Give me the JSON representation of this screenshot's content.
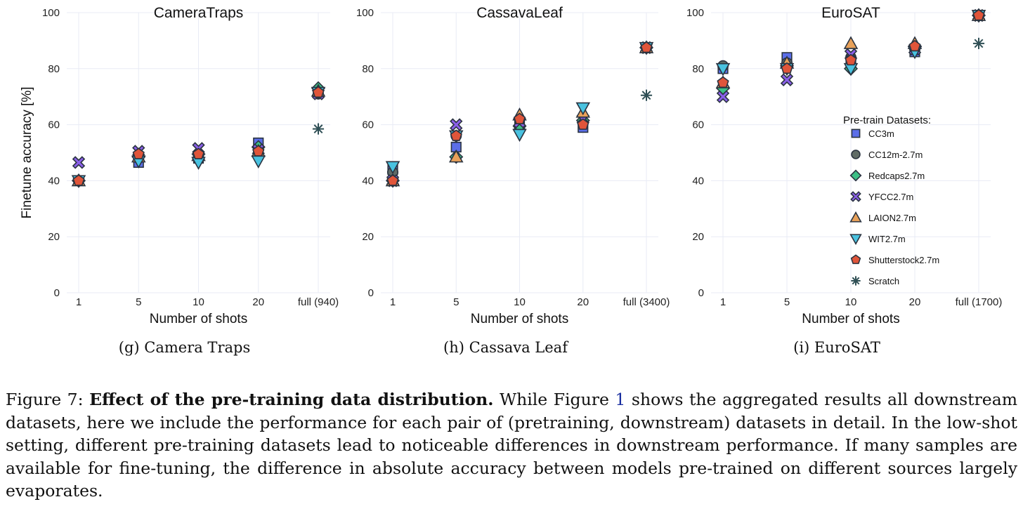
{
  "colors": {
    "CC3m": "#5b6ee8",
    "CC12m-2.7m": "#5f6b66",
    "Redcaps2.7m": "#3dbf86",
    "YFCC2.7m": "#8a5fe8",
    "LAION2.7m": "#e8a15a",
    "WIT2.7m": "#49c2e0",
    "Shutterstock2.7m": "#e0553a",
    "Scratch": "#2f4f55",
    "grid": "#e8ebf5",
    "stroke": "#2a3340"
  },
  "legend": {
    "title": "Pre-train Datasets:",
    "entries": [
      {
        "label": "CC3m",
        "marker": "square-icon",
        "color": "#5b6ee8"
      },
      {
        "label": "CC12m-2.7m",
        "marker": "circle-icon",
        "color": "#5f6b66"
      },
      {
        "label": "Redcaps2.7m",
        "marker": "diamond-icon",
        "color": "#3dbf86"
      },
      {
        "label": "YFCC2.7m",
        "marker": "x-icon",
        "color": "#8a5fe8"
      },
      {
        "label": "LAION2.7m",
        "marker": "triangle-up-icon",
        "color": "#e8a15a"
      },
      {
        "label": "WIT2.7m",
        "marker": "triangle-down-icon",
        "color": "#49c2e0"
      },
      {
        "label": "Shutterstock2.7m",
        "marker": "pentagon-icon",
        "color": "#e0553a"
      },
      {
        "label": "Scratch",
        "marker": "asterisk-icon",
        "color": "#2f4f55"
      }
    ]
  },
  "chart_data": [
    {
      "type": "scatter",
      "title": "CameraTraps",
      "subcaption": "(g)  Camera Traps",
      "xlabel": "Number of shots",
      "ylabel": "Finetune accuracy [%]",
      "categories": [
        "1",
        "5",
        "10",
        "20",
        "full (940)"
      ],
      "ylim": [
        0,
        100
      ],
      "yticks": [
        "0",
        "20",
        "40",
        "60",
        "80",
        "100"
      ],
      "grid": true,
      "series": [
        {
          "name": "CC3m",
          "values": [
            40,
            46.5,
            48,
            53.5,
            71.5
          ]
        },
        {
          "name": "CC12m-2.7m",
          "values": [
            40,
            48,
            49,
            51,
            71
          ]
        },
        {
          "name": "Redcaps2.7m",
          "values": [
            40,
            48.5,
            49.5,
            52,
            73
          ]
        },
        {
          "name": "YFCC2.7m",
          "values": [
            46.5,
            50.5,
            51.5,
            51,
            71
          ]
        },
        {
          "name": "LAION2.7m",
          "values": [
            40,
            48.5,
            49,
            50.5,
            72
          ]
        },
        {
          "name": "WIT2.7m",
          "values": [
            40,
            47,
            46.5,
            47,
            71.5
          ]
        },
        {
          "name": "Shutterstock2.7m",
          "values": [
            40,
            49.5,
            49.5,
            50.5,
            71.5
          ]
        },
        {
          "name": "Scratch",
          "values": [
            null,
            null,
            null,
            null,
            58.5
          ]
        }
      ]
    },
    {
      "type": "scatter",
      "title": "CassavaLeaf",
      "subcaption": "(h)  Cassava Leaf",
      "xlabel": "Number of shots",
      "ylabel": "",
      "categories": [
        "1",
        "5",
        "10",
        "20",
        "full (3400)"
      ],
      "ylim": [
        0,
        100
      ],
      "yticks": [
        "0",
        "20",
        "40",
        "60",
        "80",
        "100"
      ],
      "grid": true,
      "series": [
        {
          "name": "CC3m",
          "values": [
            44,
            52,
            60,
            59,
            87.5
          ]
        },
        {
          "name": "CC12m-2.7m",
          "values": [
            43,
            56,
            58.5,
            61,
            87.5
          ]
        },
        {
          "name": "Redcaps2.7m",
          "values": [
            40,
            48.5,
            59.5,
            61.5,
            87.5
          ]
        },
        {
          "name": "YFCC2.7m",
          "values": [
            40,
            60,
            61,
            62,
            87.5
          ]
        },
        {
          "name": "LAION2.7m",
          "values": [
            40,
            48.5,
            63.5,
            64.5,
            87.5
          ]
        },
        {
          "name": "WIT2.7m",
          "values": [
            45,
            56,
            56.5,
            66,
            87.5
          ]
        },
        {
          "name": "Shutterstock2.7m",
          "values": [
            40,
            56,
            62,
            60,
            87.5
          ]
        },
        {
          "name": "Scratch",
          "values": [
            null,
            null,
            null,
            null,
            70.5
          ]
        }
      ]
    },
    {
      "type": "scatter",
      "title": "EuroSAT",
      "subcaption": "(i)  EuroSAT",
      "xlabel": "Number of shots",
      "ylabel": "",
      "categories": [
        "1",
        "5",
        "10",
        "20",
        "full (1700)"
      ],
      "ylim": [
        0,
        100
      ],
      "yticks": [
        "0",
        "20",
        "40",
        "60",
        "80",
        "100"
      ],
      "grid": true,
      "legend_position": "right-middle",
      "series": [
        {
          "name": "CC3m",
          "values": [
            80,
            84,
            82,
            86,
            99
          ]
        },
        {
          "name": "CC12m-2.7m",
          "values": [
            81,
            82,
            84,
            87,
            99
          ]
        },
        {
          "name": "Redcaps2.7m",
          "values": [
            73,
            81,
            80,
            88,
            99
          ]
        },
        {
          "name": "YFCC2.7m",
          "values": [
            70,
            76,
            85,
            87,
            99
          ]
        },
        {
          "name": "LAION2.7m",
          "values": [
            75,
            82,
            89,
            89,
            99
          ]
        },
        {
          "name": "WIT2.7m",
          "values": [
            80,
            80,
            80,
            86,
            99
          ]
        },
        {
          "name": "Shutterstock2.7m",
          "values": [
            75,
            80,
            83,
            88,
            99
          ]
        },
        {
          "name": "Scratch",
          "values": [
            null,
            null,
            null,
            null,
            89
          ]
        }
      ]
    }
  ],
  "caption": {
    "prefix": "Figure 7: ",
    "bold": "Effect of the pre-training data distribution.",
    "part1": " While Figure ",
    "ref": "1",
    "part2": " shows the aggregated results all downstream datasets, here we include the performance for each pair of (pretraining, downstream) datasets in detail. In the low-shot setting, different pre-training datasets lead to noticeable differences in downstream performance. If many samples are available for fine-tuning, the difference in absolute accuracy between models pre-trained on different sources largely evaporates."
  }
}
